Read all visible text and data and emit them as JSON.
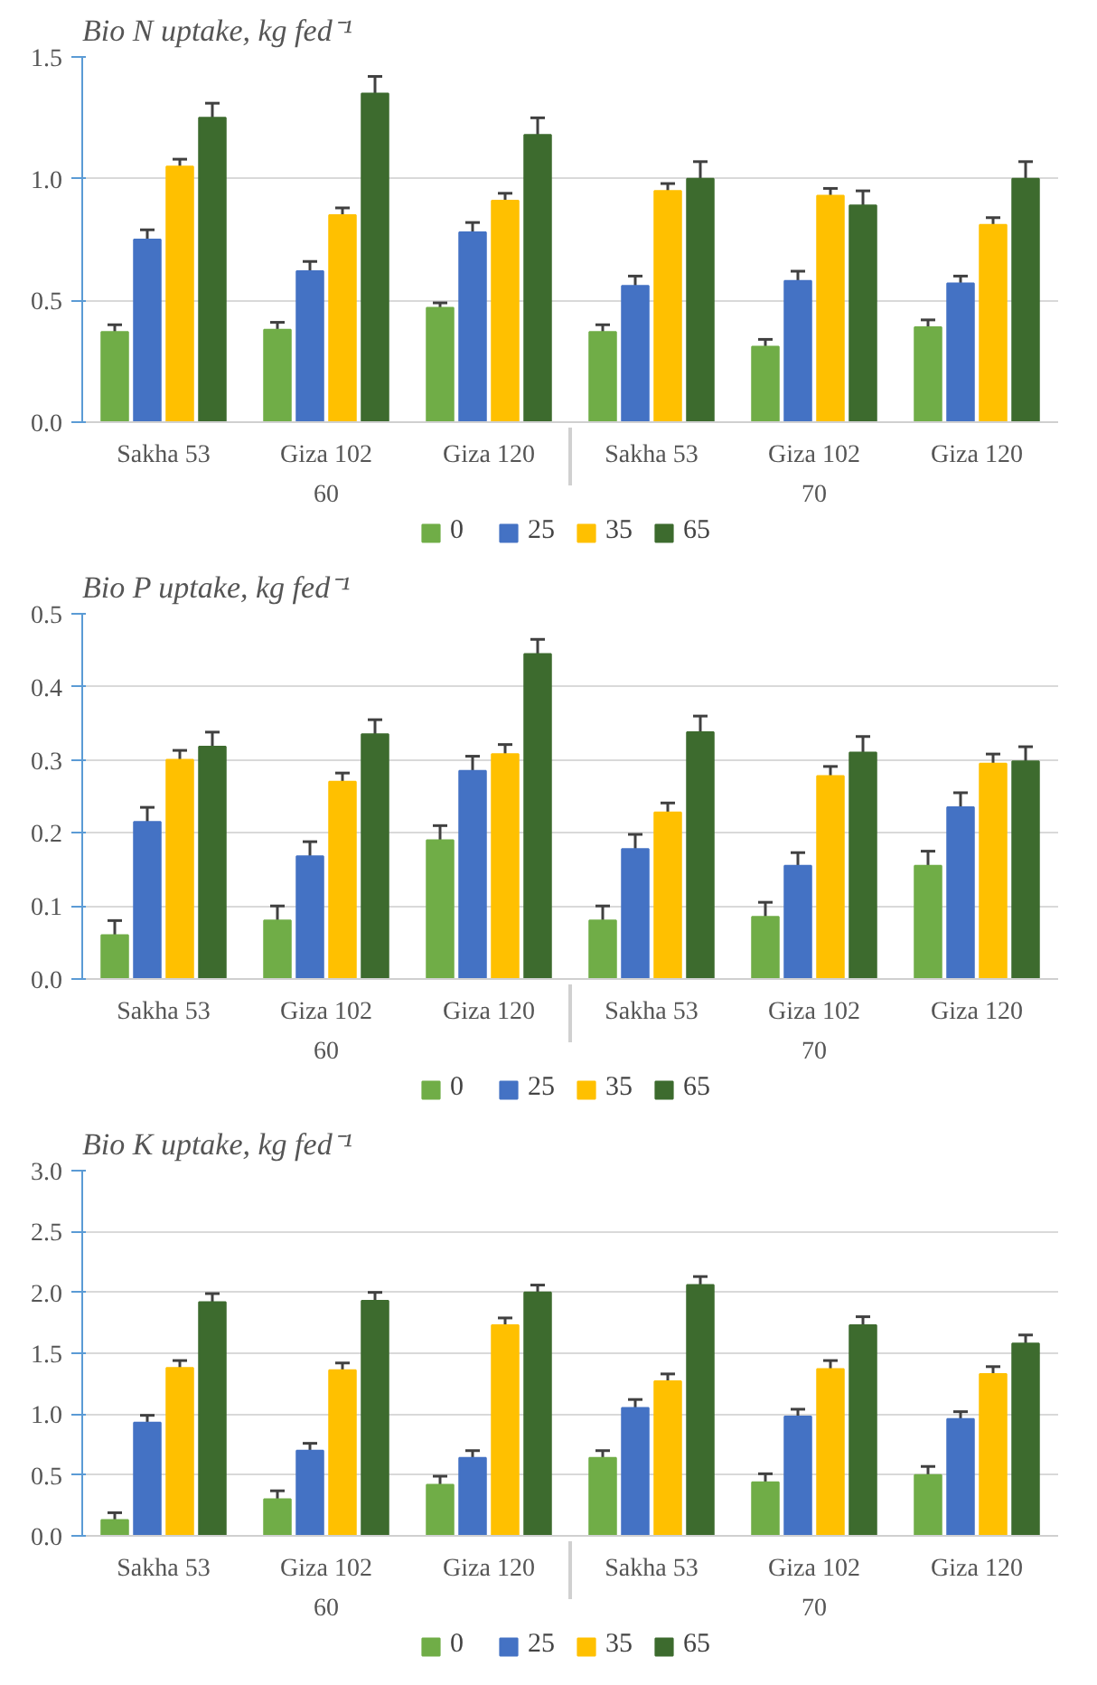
{
  "chart_data": [
    {
      "type": "bar",
      "title": "Bio N uptake, kg fed⁻¹",
      "categories": [
        "Sakha 53",
        "Giza 102",
        "Giza 120",
        "Sakha 53",
        "Giza 102",
        "Giza 120"
      ],
      "annotations": [
        "60",
        "70"
      ],
      "series": [
        {
          "name": "0",
          "color": "#70ad47",
          "values": [
            0.37,
            0.38,
            0.47,
            0.37,
            0.31,
            0.39
          ],
          "errors": [
            0.03,
            0.03,
            0.02,
            0.03,
            0.03,
            0.03
          ]
        },
        {
          "name": "25",
          "color": "#4472c4",
          "values": [
            0.75,
            0.62,
            0.78,
            0.56,
            0.58,
            0.57
          ],
          "errors": [
            0.04,
            0.04,
            0.04,
            0.04,
            0.04,
            0.03
          ]
        },
        {
          "name": "35",
          "color": "#ffc000",
          "values": [
            1.05,
            0.85,
            0.91,
            0.95,
            0.93,
            0.81
          ],
          "errors": [
            0.03,
            0.03,
            0.03,
            0.03,
            0.03,
            0.03
          ]
        },
        {
          "name": "65",
          "color": "#3d6b2e",
          "values": [
            1.25,
            1.35,
            1.18,
            1.0,
            0.89,
            1.0
          ],
          "errors": [
            0.06,
            0.07,
            0.07,
            0.07,
            0.06,
            0.07
          ]
        }
      ],
      "ylim": [
        0,
        1.5
      ],
      "yticks": [
        {
          "value": 0,
          "label": "0.0"
        },
        {
          "value": 0.5,
          "label": "0.5"
        },
        {
          "value": 1,
          "label": "1.0"
        },
        {
          "value": 1.5,
          "label": "1.5"
        }
      ],
      "grid": "y",
      "legend": "bottom"
    },
    {
      "type": "bar",
      "title": "Bio P uptake, kg fed⁻¹",
      "categories": [
        "Sakha 53",
        "Giza 102",
        "Giza 120",
        "Sakha 53",
        "Giza 102",
        "Giza 120"
      ],
      "annotations": [
        "60",
        "70"
      ],
      "series": [
        {
          "name": "0",
          "color": "#70ad47",
          "values": [
            0.06,
            0.08,
            0.19,
            0.08,
            0.085,
            0.155
          ],
          "errors": [
            0.02,
            0.02,
            0.02,
            0.02,
            0.02,
            0.02
          ]
        },
        {
          "name": "25",
          "color": "#4472c4",
          "values": [
            0.215,
            0.168,
            0.285,
            0.178,
            0.155,
            0.235
          ],
          "errors": [
            0.02,
            0.02,
            0.02,
            0.02,
            0.018,
            0.02
          ]
        },
        {
          "name": "35",
          "color": "#ffc000",
          "values": [
            0.3,
            0.27,
            0.308,
            0.228,
            0.278,
            0.295
          ],
          "errors": [
            0.013,
            0.012,
            0.013,
            0.013,
            0.013,
            0.013
          ]
        },
        {
          "name": "65",
          "color": "#3d6b2e",
          "values": [
            0.318,
            0.335,
            0.445,
            0.338,
            0.31,
            0.298
          ],
          "errors": [
            0.02,
            0.02,
            0.02,
            0.022,
            0.022,
            0.02
          ]
        }
      ],
      "ylim": [
        0,
        0.5
      ],
      "yticks": [
        {
          "value": 0,
          "label": "0.0"
        },
        0.1,
        0.2,
        0.3,
        0.4,
        0.5
      ],
      "grid": "y",
      "legend": "bottom"
    },
    {
      "type": "bar",
      "title": "Bio K uptake, kg fed⁻¹",
      "categories": [
        "Sakha 53",
        "Giza 102",
        "Giza 120",
        "Sakha 53",
        "Giza 102",
        "Giza 120"
      ],
      "annotations": [
        "60",
        "70"
      ],
      "series": [
        {
          "name": "0",
          "color": "#70ad47",
          "values": [
            0.13,
            0.3,
            0.42,
            0.64,
            0.44,
            0.5
          ],
          "errors": [
            0.06,
            0.07,
            0.07,
            0.06,
            0.07,
            0.07
          ]
        },
        {
          "name": "25",
          "color": "#4472c4",
          "values": [
            0.93,
            0.7,
            0.64,
            1.05,
            0.98,
            0.96
          ],
          "errors": [
            0.06,
            0.06,
            0.06,
            0.07,
            0.06,
            0.06
          ]
        },
        {
          "name": "35",
          "color": "#ffc000",
          "values": [
            1.38,
            1.36,
            1.73,
            1.27,
            1.37,
            1.33
          ],
          "errors": [
            0.06,
            0.06,
            0.06,
            0.06,
            0.07,
            0.06
          ]
        },
        {
          "name": "65",
          "color": "#3d6b2e",
          "values": [
            1.92,
            1.93,
            2.0,
            2.06,
            1.73,
            1.58
          ],
          "errors": [
            0.07,
            0.07,
            0.06,
            0.07,
            0.07,
            0.07
          ]
        }
      ],
      "ylim": [
        0,
        3.0
      ],
      "yticks": [
        {
          "value": 0,
          "label": "0.0"
        },
        {
          "value": 0.5,
          "label": "0.5"
        },
        {
          "value": 1,
          "label": "1.0"
        },
        {
          "value": 1.5,
          "label": "1.5"
        },
        {
          "value": 2,
          "label": "2.0"
        },
        {
          "value": 2.5,
          "label": "2.5"
        },
        {
          "value": 3,
          "label": "3.0"
        }
      ],
      "grid": "y",
      "legend": "bottom"
    }
  ]
}
